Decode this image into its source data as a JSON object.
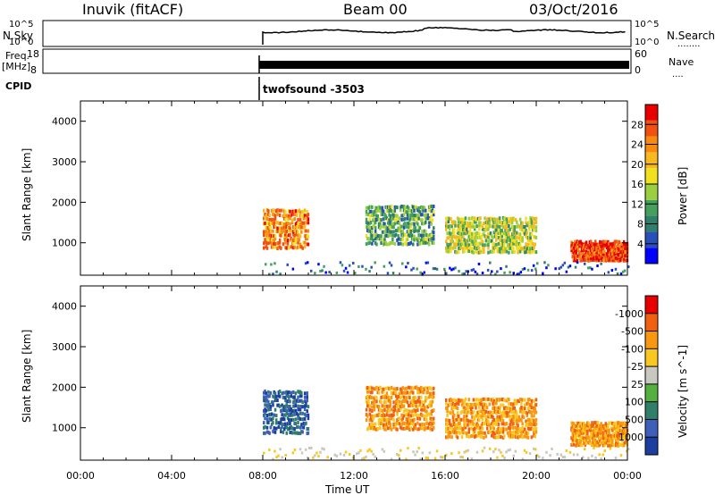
{
  "header": {
    "site_title": "Inuvik (fitACF)",
    "beam_title": "Beam 00",
    "date": "03/Oct/2016"
  },
  "strip_panels": {
    "nsky_label": "N.Sky",
    "nsky_ticks": [
      "10^5",
      "10^0"
    ],
    "nsearch_label": "N.Search",
    "nsearch_ticks": [
      "10^5",
      "10^0"
    ],
    "freq_label": "Freq.",
    "freq_unit": "[MHz]",
    "freq_ticks": [
      "18",
      "8"
    ],
    "nave_label": "Nave",
    "nave_ticks": [
      "60",
      "0"
    ],
    "cpid_label": "CPID",
    "cpid_text": "twofsound -3503",
    "dots": "........",
    "dots_short": "...."
  },
  "chart_data": [
    {
      "type": "heatmap",
      "name": "power-panel",
      "ylabel": "Slant Range [km]",
      "xlabel": "",
      "ylim": [
        200,
        4500
      ],
      "y_ticks": [
        "1000",
        "2000",
        "3000",
        "4000"
      ],
      "colorbar": {
        "label": "Power [dB]",
        "ticks": [
          "4",
          "8",
          "12",
          "16",
          "20",
          "24",
          "28"
        ],
        "colors": [
          "#0000ff",
          "#2a4fb8",
          "#2f7f6a",
          "#44a05a",
          "#9ad040",
          "#f0e020",
          "#f8b820",
          "#f88a10",
          "#f05010",
          "#e80000"
        ]
      },
      "data_start_hour": 8,
      "series": [
        {
          "x": [
            8.0,
            10.0
          ],
          "y": [
            900,
            1900
          ],
          "value_db": 24
        },
        {
          "x": [
            12.5,
            15.5
          ],
          "y": [
            1000,
            2000
          ],
          "value_db": 12
        },
        {
          "x": [
            16.0,
            20.0
          ],
          "y": [
            800,
            1700
          ],
          "value_db": 16
        },
        {
          "x": [
            21.5,
            24.0
          ],
          "y": [
            600,
            1100
          ],
          "value_db": 28
        }
      ]
    },
    {
      "type": "heatmap",
      "name": "velocity-panel",
      "ylabel": "Slant Range [km]",
      "xlabel": "Time UT",
      "ylim": [
        200,
        4500
      ],
      "y_ticks": [
        "1000",
        "2000",
        "3000",
        "4000"
      ],
      "x_ticks": [
        "00:00",
        "04:00",
        "08:00",
        "12:00",
        "16:00",
        "20:00",
        "00:00"
      ],
      "colorbar": {
        "label": "Velocity [m s^-1]",
        "ticks": [
          "1000",
          "500",
          "100",
          "25",
          "-25",
          "-100",
          "-500",
          "-1000"
        ],
        "colors": [
          "#1c3f9f",
          "#3e60b8",
          "#2f7f6a",
          "#55b040",
          "#c8c8c0",
          "#f8c820",
          "#f89810",
          "#f06010",
          "#e80000"
        ]
      },
      "data_start_hour": 8,
      "series": [
        {
          "x": [
            8.0,
            10.0
          ],
          "y": [
            900,
            2000
          ],
          "value_ms": 500
        },
        {
          "x": [
            12.5,
            15.5
          ],
          "y": [
            1000,
            2100
          ],
          "value_ms": -500
        },
        {
          "x": [
            16.0,
            20.0
          ],
          "y": [
            800,
            1800
          ],
          "value_ms": -500
        },
        {
          "x": [
            21.5,
            24.0
          ],
          "y": [
            600,
            1200
          ],
          "value_ms": -500
        }
      ]
    }
  ]
}
